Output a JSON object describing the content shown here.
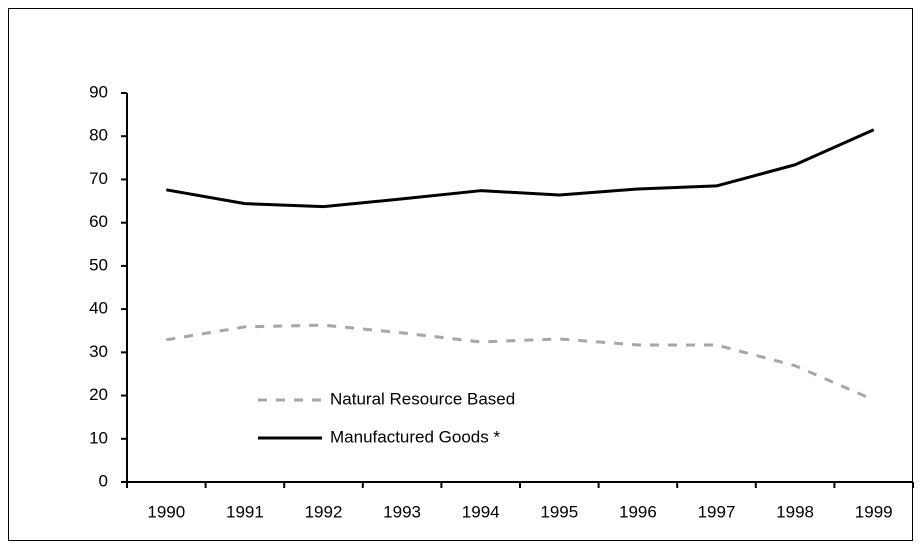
{
  "chart_data": {
    "type": "line",
    "categories": [
      "1990",
      "1991",
      "1992",
      "1993",
      "1994",
      "1995",
      "1996",
      "1997",
      "1998",
      "1999"
    ],
    "series": [
      {
        "name": "Natural Resource Based",
        "color": "#a6a6a6",
        "dashed": true,
        "values": [
          32.9,
          35.9,
          36.3,
          34.5,
          32.4,
          33.1,
          31.7,
          31.7,
          26.9,
          19.0
        ]
      },
      {
        "name": "Manufactured Goods *",
        "color": "#000000",
        "dashed": false,
        "values": [
          67.6,
          64.4,
          63.7,
          65.5,
          67.4,
          66.4,
          67.8,
          68.5,
          73.4,
          81.5
        ]
      }
    ],
    "ylim": [
      0,
      90
    ],
    "yticks": [
      0,
      10,
      20,
      30,
      40,
      50,
      60,
      70,
      80,
      90
    ],
    "grid": false,
    "legend": "lower left"
  }
}
